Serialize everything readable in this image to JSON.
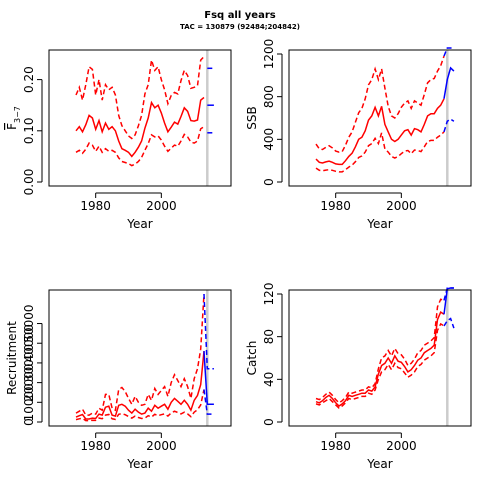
{
  "title": "Fsq all years",
  "subtitle": "TAC = 130879 (92484;204842)",
  "colors": {
    "estimate": "#ff0000",
    "forecast": "#0000ff",
    "tac_line": "#cccccc",
    "axis": "#000000"
  },
  "chart_data": [
    {
      "type": "line",
      "id": "fbar",
      "ylabel": "F̄3−7",
      "ylabel_main": "F",
      "ylabel_sub": "3−7",
      "xlabel": "Year",
      "xlim": [
        1967,
        2020
      ],
      "ylim": [
        0,
        0.25
      ],
      "xticks": [
        1980,
        2000
      ],
      "yticks": [
        0.0,
        0.1,
        0.2
      ],
      "yticklabels": [
        "0.00",
        "0.10",
        "0.20"
      ],
      "tac_year": 2014,
      "x": [
        1974,
        1975,
        1976,
        1977,
        1978,
        1979,
        1980,
        1981,
        1982,
        1983,
        1984,
        1985,
        1986,
        1987,
        1988,
        1989,
        1990,
        1991,
        1992,
        1993,
        1994,
        1995,
        1996,
        1997,
        1998,
        1999,
        2000,
        2001,
        2002,
        2003,
        2004,
        2005,
        2006,
        2007,
        2008,
        2009,
        2010,
        2011,
        2012,
        2013
      ],
      "series": [
        {
          "role": "estimate",
          "values": [
            0.1,
            0.108,
            0.098,
            0.112,
            0.13,
            0.125,
            0.103,
            0.12,
            0.098,
            0.115,
            0.103,
            0.108,
            0.1,
            0.08,
            0.065,
            0.062,
            0.058,
            0.05,
            0.058,
            0.068,
            0.08,
            0.105,
            0.125,
            0.155,
            0.145,
            0.15,
            0.135,
            0.115,
            0.098,
            0.107,
            0.117,
            0.113,
            0.128,
            0.145,
            0.138,
            0.12,
            0.119,
            0.121,
            0.16,
            0.165
          ]
        },
        {
          "role": "upper",
          "values": [
            0.17,
            0.185,
            0.16,
            0.19,
            0.225,
            0.22,
            0.17,
            0.2,
            0.16,
            0.19,
            0.18,
            0.185,
            0.17,
            0.13,
            0.11,
            0.1,
            0.09,
            0.085,
            0.092,
            0.11,
            0.13,
            0.172,
            0.19,
            0.238,
            0.218,
            0.225,
            0.2,
            0.18,
            0.153,
            0.169,
            0.175,
            0.172,
            0.198,
            0.218,
            0.208,
            0.183,
            0.185,
            0.188,
            0.238,
            0.245
          ]
        },
        {
          "role": "lower",
          "values": [
            0.058,
            0.062,
            0.056,
            0.064,
            0.076,
            0.072,
            0.06,
            0.07,
            0.058,
            0.065,
            0.06,
            0.062,
            0.058,
            0.047,
            0.04,
            0.038,
            0.036,
            0.032,
            0.035,
            0.04,
            0.048,
            0.062,
            0.075,
            0.092,
            0.088,
            0.09,
            0.082,
            0.07,
            0.06,
            0.066,
            0.072,
            0.07,
            0.08,
            0.093,
            0.088,
            0.078,
            0.076,
            0.08,
            0.104,
            0.108
          ]
        }
      ],
      "forecast": {
        "x": [
          2014,
          2015,
          2016
        ],
        "estimate": [
          0.15,
          0.15,
          0.15
        ],
        "upper": [
          0.222,
          0.222,
          0.222
        ],
        "lower": [
          0.096,
          0.096,
          0.096
        ]
      }
    },
    {
      "type": "line",
      "id": "ssb",
      "ylabel": "SSB",
      "xlabel": "Year",
      "xlim": [
        1967,
        2020
      ],
      "ylim": [
        0,
        1200
      ],
      "xticks": [
        1980,
        2000
      ],
      "yticks": [
        0,
        400,
        800,
        1200
      ],
      "yticklabels": [
        "0",
        "400",
        "800",
        "1200"
      ],
      "tac_year": 2014,
      "x": [
        1974,
        1975,
        1976,
        1977,
        1978,
        1979,
        1980,
        1981,
        1982,
        1983,
        1984,
        1985,
        1986,
        1987,
        1988,
        1989,
        1990,
        1991,
        1992,
        1993,
        1994,
        1995,
        1996,
        1997,
        1998,
        1999,
        2000,
        2001,
        2002,
        2003,
        2004,
        2005,
        2006,
        2007,
        2008,
        2009,
        2010,
        2011,
        2012,
        2013
      ],
      "series": [
        {
          "role": "estimate",
          "values": [
            215,
            185,
            178,
            188,
            195,
            185,
            170,
            165,
            165,
            200,
            240,
            270,
            330,
            400,
            420,
            480,
            580,
            620,
            700,
            620,
            710,
            540,
            470,
            400,
            380,
            400,
            440,
            480,
            490,
            440,
            500,
            490,
            470,
            540,
            620,
            640,
            640,
            690,
            720,
            780
          ]
        },
        {
          "role": "upper",
          "values": [
            355,
            310,
            305,
            325,
            340,
            320,
            290,
            280,
            285,
            345,
            420,
            470,
            560,
            650,
            690,
            780,
            910,
            960,
            1060,
            960,
            1060,
            880,
            710,
            620,
            600,
            640,
            700,
            740,
            760,
            690,
            760,
            740,
            720,
            820,
            930,
            960,
            970,
            1040,
            1090,
            1180
          ]
        },
        {
          "role": "lower",
          "values": [
            130,
            110,
            105,
            112,
            115,
            110,
            100,
            95,
            95,
            115,
            140,
            158,
            190,
            230,
            245,
            280,
            340,
            360,
            410,
            360,
            460,
            310,
            280,
            240,
            225,
            240,
            265,
            290,
            295,
            265,
            300,
            295,
            285,
            330,
            380,
            390,
            390,
            420,
            440,
            470
          ]
        }
      ],
      "forecast": {
        "x": [
          2013,
          2014,
          2015,
          2016
        ],
        "estimate": [
          780,
          960,
          1070,
          1040
        ],
        "upper": [
          1180,
          1280,
          1280,
          1280
        ],
        "lower": [
          470,
          570,
          590,
          570
        ]
      }
    },
    {
      "type": "line",
      "id": "recruitment",
      "ylabel": "Recruitment",
      "xlabel": "Year",
      "xlim": [
        1967,
        2020
      ],
      "ylim": [
        0,
        65000
      ],
      "xticks": [
        1980,
        2000
      ],
      "yticks": [
        0,
        10000,
        20000,
        30000,
        40000,
        50000
      ],
      "yticklabels": [
        "0",
        "10000",
        "20000",
        "30000",
        "40000",
        "50000"
      ],
      "tac_year": 2014,
      "x": [
        1974,
        1975,
        1976,
        1977,
        1978,
        1979,
        1980,
        1981,
        1982,
        1983,
        1984,
        1985,
        1986,
        1987,
        1988,
        1989,
        1990,
        1991,
        1992,
        1993,
        1994,
        1995,
        1996,
        1997,
        1998,
        1999,
        2000,
        2001,
        2002,
        2003,
        2004,
        2005,
        2006,
        2007,
        2008,
        2009,
        2010,
        2011,
        2012,
        2013
      ],
      "series": [
        {
          "role": "estimate",
          "values": [
            2500,
            3200,
            3800,
            1500,
            1500,
            2000,
            1800,
            4000,
            3500,
            7500,
            8000,
            3500,
            3000,
            8500,
            9000,
            8000,
            6000,
            4500,
            6500,
            5000,
            4000,
            4500,
            7000,
            5500,
            8500,
            7000,
            8000,
            9000,
            6500,
            10000,
            12000,
            10500,
            9000,
            11000,
            9000,
            6000,
            11000,
            13500,
            19000,
            36000
          ]
        },
        {
          "role": "upper",
          "values": [
            4500,
            5500,
            6500,
            3500,
            3500,
            4500,
            4000,
            7000,
            6000,
            14000,
            14000,
            7000,
            6000,
            16500,
            17500,
            15500,
            12000,
            9000,
            13000,
            10000,
            8500,
            9000,
            14000,
            11000,
            17000,
            14000,
            16000,
            18000,
            13000,
            20000,
            24000,
            21000,
            18000,
            22000,
            18000,
            12000,
            22000,
            27000,
            37000,
            65000
          ]
        },
        {
          "role": "lower",
          "values": [
            1200,
            1600,
            1900,
            700,
            700,
            900,
            800,
            2000,
            1700,
            3500,
            3800,
            1600,
            1300,
            3900,
            4200,
            3700,
            2800,
            2000,
            3000,
            2300,
            1800,
            2000,
            3200,
            2500,
            3900,
            3200,
            3700,
            4100,
            3000,
            4600,
            5500,
            4800,
            4100,
            5000,
            4100,
            2700,
            5000,
            6200,
            8700,
            16500
          ]
        }
      ],
      "forecast": {
        "x": [
          2013,
          2014,
          2015,
          2016
        ],
        "estimate": [
          36000,
          9000,
          9000,
          9000
        ],
        "upper": [
          65000,
          27000,
          27000,
          27000
        ],
        "lower": [
          16500,
          4000,
          4000,
          4000
        ]
      }
    },
    {
      "type": "line",
      "id": "catch",
      "ylabel": "Catch",
      "xlabel": "Year",
      "xlim": [
        1967,
        2020
      ],
      "ylim": [
        0,
        120
      ],
      "xticks": [
        1980,
        2000
      ],
      "yticks": [
        0,
        40,
        80,
        120
      ],
      "yticklabels": [
        "0",
        "40",
        "80",
        "120"
      ],
      "tac_year": 2014,
      "x": [
        1974,
        1975,
        1976,
        1977,
        1978,
        1979,
        1980,
        1981,
        1982,
        1983,
        1984,
        1985,
        1986,
        1987,
        1988,
        1989,
        1990,
        1991,
        1992,
        1993,
        1994,
        1995,
        1996,
        1997,
        1998,
        1999,
        2000,
        2001,
        2002,
        2003,
        2004,
        2005,
        2006,
        2007,
        2008,
        2009,
        2010,
        2011,
        2012,
        2013
      ],
      "series": [
        {
          "role": "estimate",
          "values": [
            19,
            18,
            20,
            23,
            25,
            22,
            18,
            15,
            17,
            20,
            25,
            24,
            25,
            26,
            27,
            27,
            30,
            29,
            33,
            45,
            53,
            55,
            60,
            55,
            62,
            57,
            56,
            52,
            47,
            49,
            53,
            58,
            60,
            65,
            67,
            69,
            72,
            96,
            103,
            101
          ]
        },
        {
          "role": "upper",
          "values": [
            22,
            21,
            23,
            26,
            28,
            25,
            21,
            18,
            20,
            23,
            28,
            27,
            28,
            29,
            30,
            30,
            33,
            32,
            36,
            50,
            60,
            62,
            67,
            62,
            69,
            64,
            63,
            59,
            53,
            55,
            59,
            65,
            67,
            72,
            74,
            76,
            79,
            108,
            115,
            114
          ]
        },
        {
          "role": "lower",
          "values": [
            17,
            16,
            18,
            20,
            22,
            19,
            16,
            13,
            15,
            18,
            22,
            21,
            22,
            23,
            24,
            24,
            27,
            26,
            30,
            40,
            47,
            49,
            54,
            49,
            55,
            51,
            50,
            46,
            42,
            44,
            47,
            52,
            54,
            58,
            60,
            62,
            65,
            86,
            92,
            90
          ]
        }
      ],
      "forecast": {
        "x": [
          2013,
          2014,
          2015,
          2016
        ],
        "estimate": [
          101,
          125,
          131,
          128
        ],
        "upper": [
          114,
          140,
          145,
          142
        ],
        "lower": [
          90,
          95,
          97,
          88
        ]
      }
    }
  ]
}
